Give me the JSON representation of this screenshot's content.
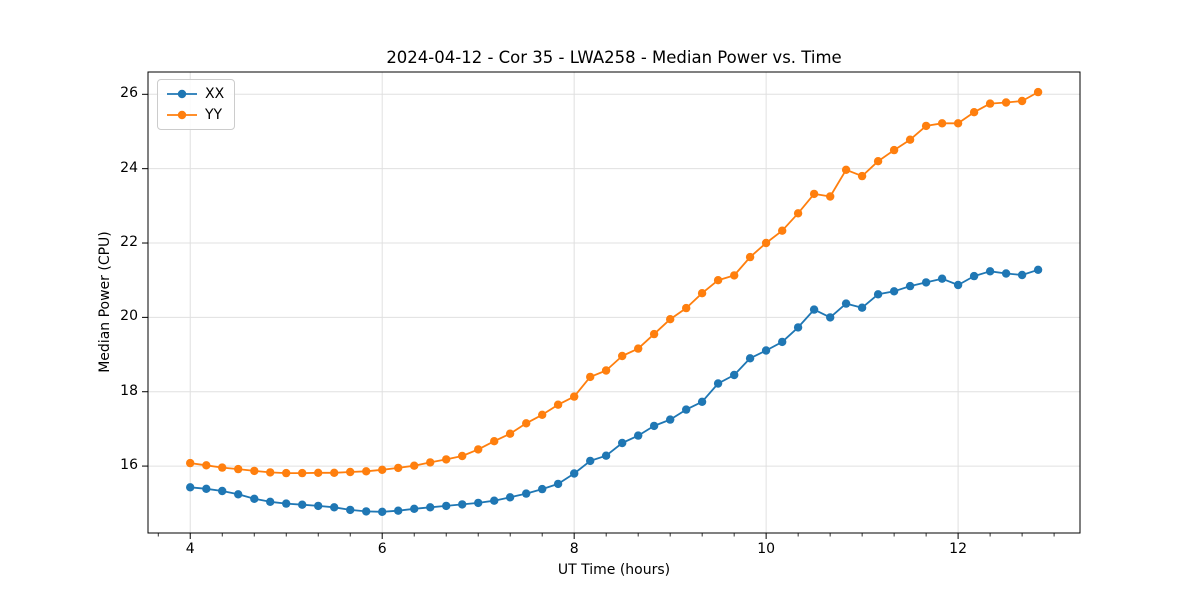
{
  "chart_data": {
    "type": "line",
    "title": "2024-04-12 - Cor 35 - LWA258 - Median Power vs. Time",
    "xlabel": "UT Time (hours)",
    "ylabel": "Median Power (CPU)",
    "xlim": [
      3.56,
      13.27
    ],
    "ylim": [
      14.2,
      26.6
    ],
    "xticks": [
      4,
      6,
      8,
      10,
      12
    ],
    "yticks": [
      16,
      18,
      20,
      22,
      24,
      26
    ],
    "x_minor_step": 0.333,
    "grid": true,
    "grid_color": "#e0e0e0",
    "axis_color": "#000000",
    "legend_position": "upper-left",
    "x": [
      4.0,
      4.167,
      4.333,
      4.5,
      4.667,
      4.833,
      5.0,
      5.167,
      5.333,
      5.5,
      5.667,
      5.833,
      6.0,
      6.167,
      6.333,
      6.5,
      6.667,
      6.833,
      7.0,
      7.167,
      7.333,
      7.5,
      7.667,
      7.833,
      8.0,
      8.167,
      8.333,
      8.5,
      8.667,
      8.833,
      9.0,
      9.167,
      9.333,
      9.5,
      9.667,
      9.833,
      10.0,
      10.167,
      10.333,
      10.5,
      10.667,
      10.833,
      11.0,
      11.167,
      11.333,
      11.5,
      11.667,
      11.833,
      12.0,
      12.167,
      12.333,
      12.5,
      12.667,
      12.833
    ],
    "series": [
      {
        "name": "XX",
        "color": "#1f77b4",
        "values": [
          15.43,
          15.39,
          15.33,
          15.24,
          15.12,
          15.04,
          14.99,
          14.96,
          14.93,
          14.89,
          14.82,
          14.78,
          14.77,
          14.8,
          14.85,
          14.89,
          14.93,
          14.97,
          15.01,
          15.07,
          15.16,
          15.26,
          15.38,
          15.52,
          15.8,
          16.14,
          16.28,
          16.62,
          16.82,
          17.08,
          17.25,
          17.52,
          17.73,
          18.22,
          18.45,
          18.9,
          19.11,
          19.34,
          19.73,
          20.21,
          20.0,
          20.37,
          20.26,
          20.62,
          20.7,
          20.84,
          20.94,
          21.04,
          20.87,
          21.11,
          21.24,
          21.18,
          21.14,
          21.28
        ]
      },
      {
        "name": "YY",
        "color": "#ff7f0e",
        "values": [
          16.08,
          16.02,
          15.96,
          15.92,
          15.87,
          15.83,
          15.81,
          15.81,
          15.82,
          15.82,
          15.84,
          15.86,
          15.9,
          15.95,
          16.01,
          16.1,
          16.18,
          16.27,
          16.45,
          16.67,
          16.87,
          17.15,
          17.38,
          17.65,
          17.87,
          18.4,
          18.57,
          18.96,
          19.16,
          19.55,
          19.95,
          20.25,
          20.65,
          21.0,
          21.13,
          21.62,
          22.0,
          22.33,
          22.8,
          23.32,
          23.25,
          23.97,
          23.8,
          24.2,
          24.5,
          24.78,
          25.15,
          25.22,
          25.22,
          25.52,
          25.75,
          25.78,
          25.82,
          26.06
        ]
      }
    ]
  }
}
